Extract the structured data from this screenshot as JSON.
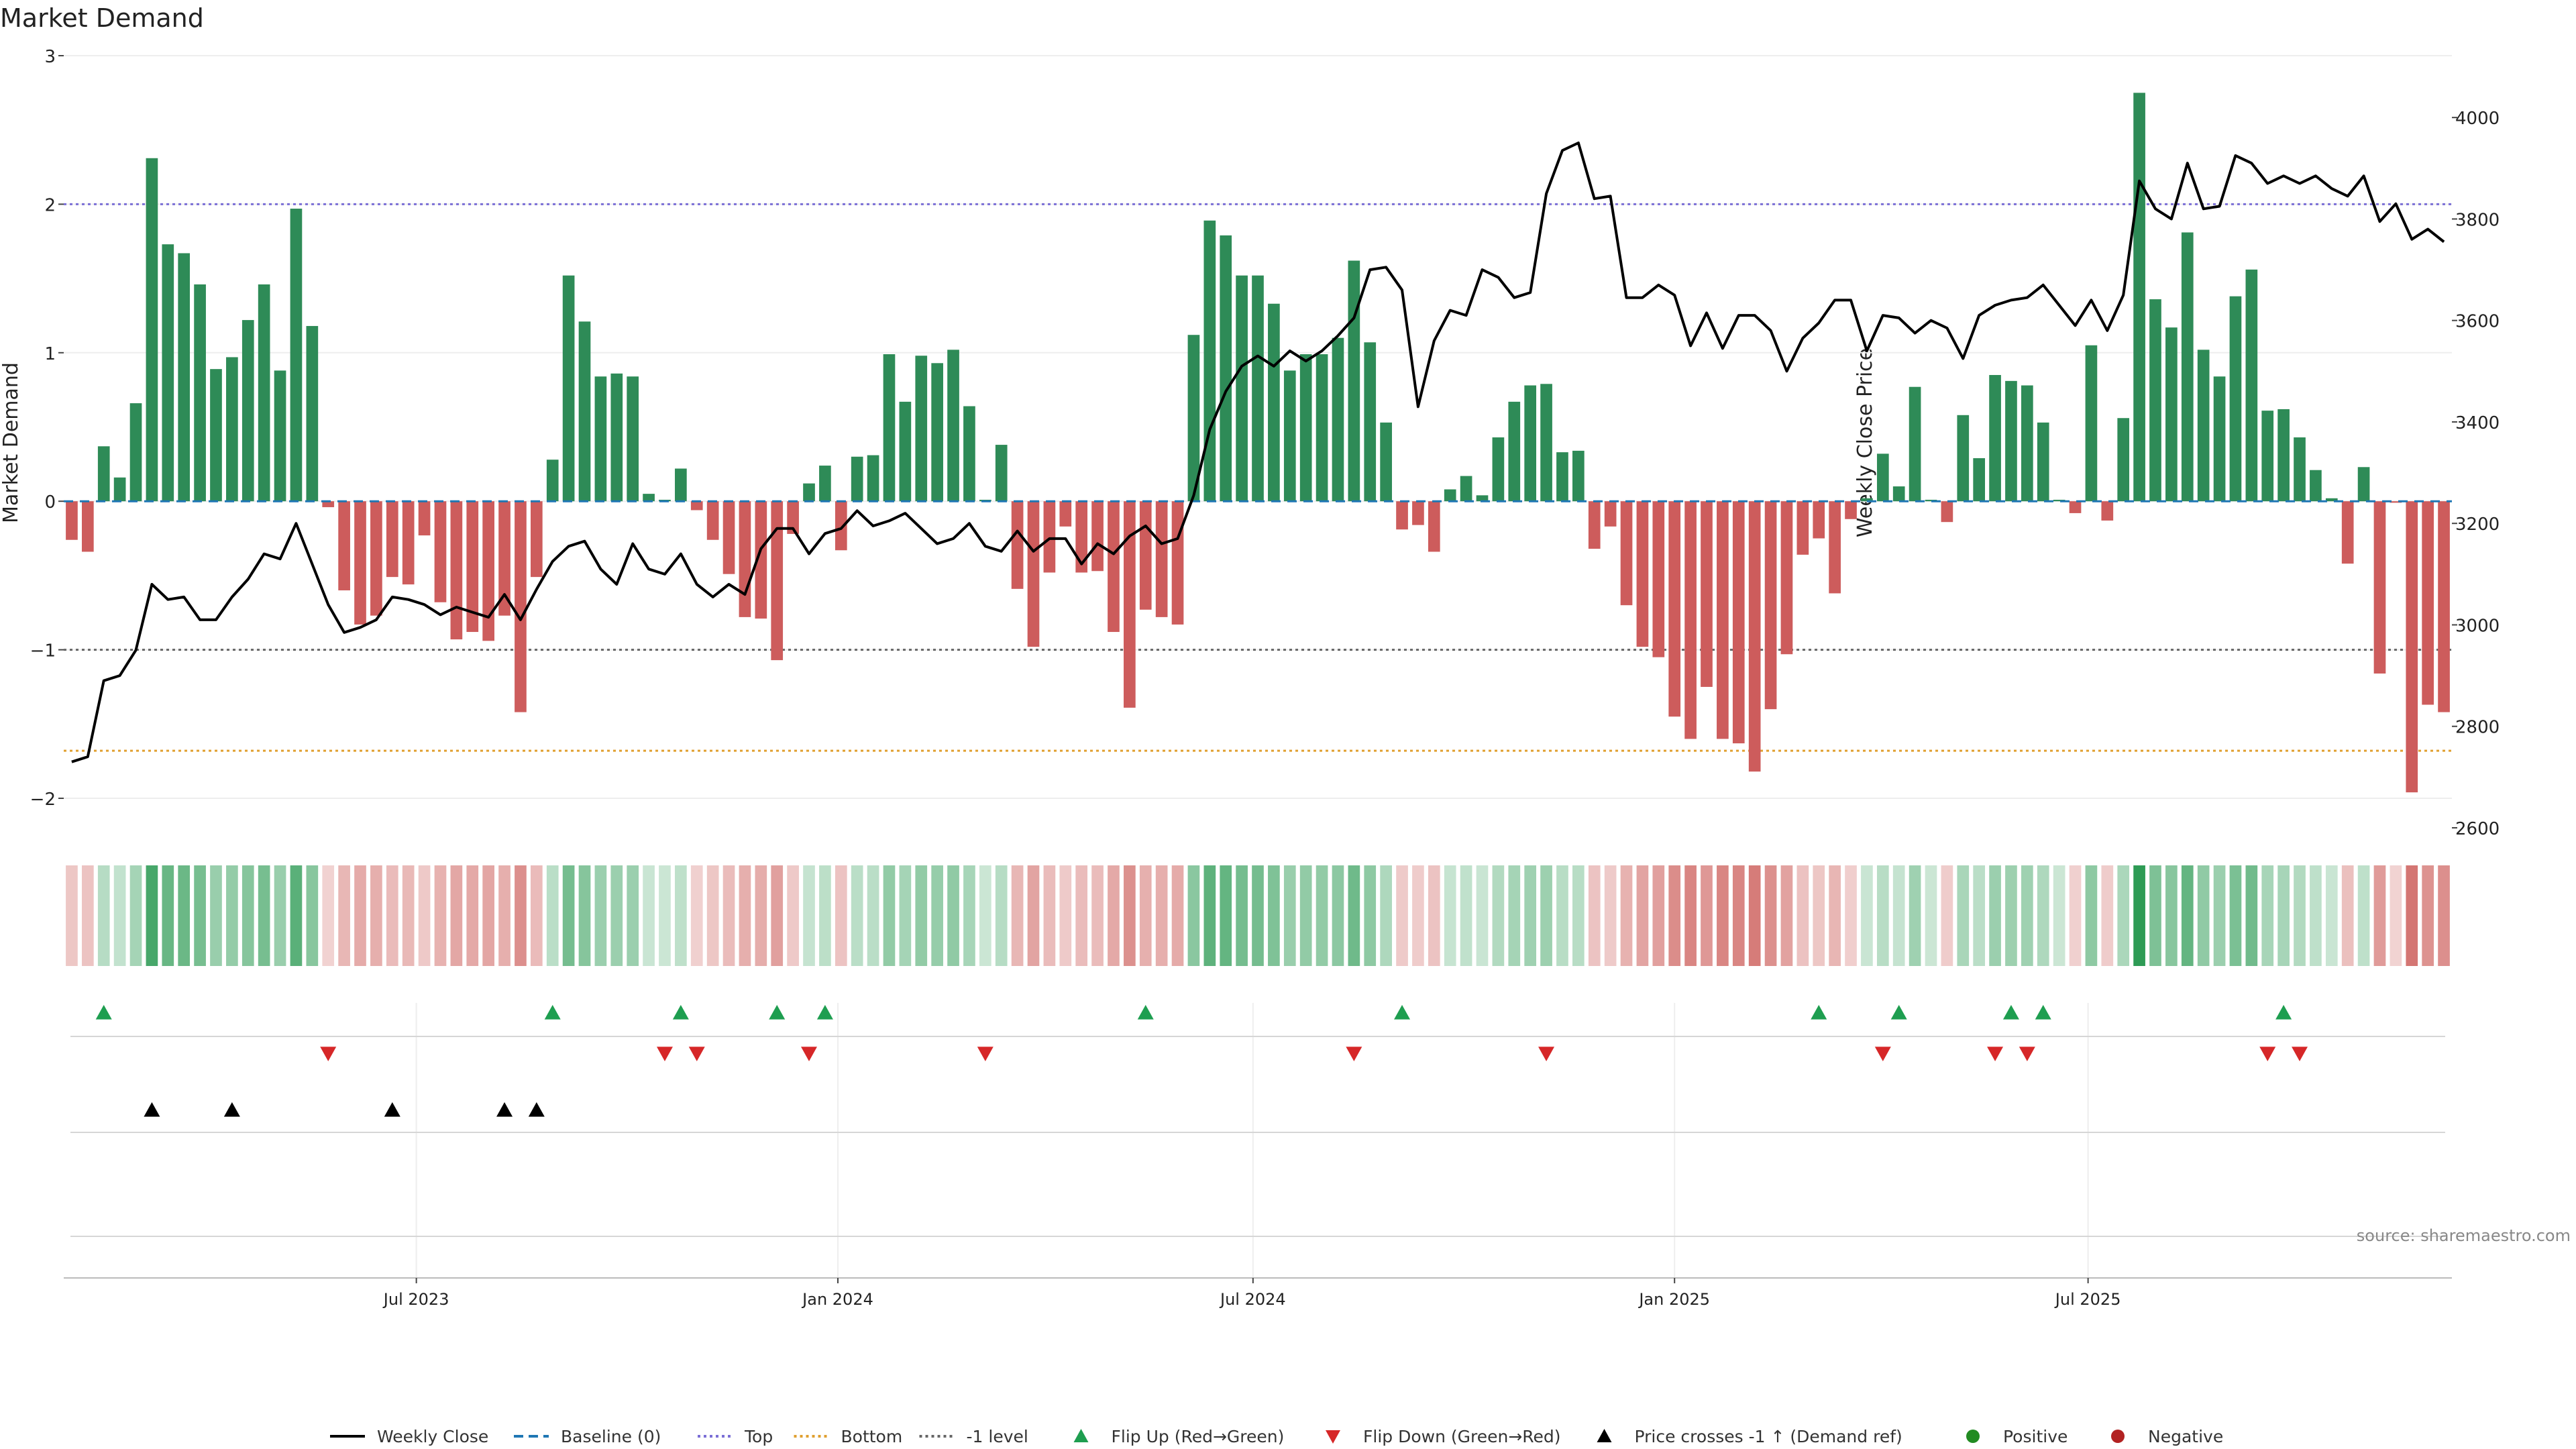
{
  "chart_data": {
    "type": "bar",
    "title": "Market Demand",
    "ylabel": "Market Demand",
    "y2label": "Weekly Close Price",
    "ylim": [
      -2.0,
      3.0
    ],
    "y2lim": [
      2600,
      4150
    ],
    "yticks": [
      -2,
      -1,
      0,
      1,
      2,
      3
    ],
    "ytick_labels": [
      "−2",
      "−1",
      "0",
      "1",
      "2",
      "3"
    ],
    "y2ticks": [
      2600,
      2800,
      3000,
      3200,
      3400,
      3600,
      3800,
      4000
    ],
    "y2tick_labels": [
      "2600",
      "2800",
      "3000",
      "3200",
      "3400",
      "3600",
      "3800",
      "4000"
    ],
    "xticks": [
      {
        "label": "Jul 2023",
        "week": 22
      },
      {
        "label": "Jan 2024",
        "week": 48.3
      },
      {
        "label": "Jul 2024",
        "week": 74.2
      },
      {
        "label": "Jan 2025",
        "week": 100.5
      },
      {
        "label": "Jul 2025",
        "week": 126.3
      }
    ],
    "reference_lines": [
      {
        "name": "Top",
        "value": 2.0,
        "color": "#7b6fd6"
      },
      {
        "name": "-1 level",
        "value": -1.0,
        "color": "#666666"
      },
      {
        "name": "Bottom",
        "value": -1.68,
        "color": "#e0a030"
      }
    ],
    "series": [
      {
        "name": "Market Demand",
        "values": [
          -0.26,
          -0.34,
          0.37,
          0.16,
          0.66,
          2.31,
          1.73,
          1.67,
          1.46,
          0.89,
          0.97,
          1.22,
          1.46,
          0.88,
          1.97,
          1.18,
          -0.04,
          -0.6,
          -0.83,
          -0.77,
          -0.51,
          -0.56,
          -0.23,
          -0.68,
          -0.93,
          -0.88,
          -0.94,
          -0.77,
          -1.42,
          -0.51,
          0.28,
          1.52,
          1.21,
          0.84,
          0.86,
          0.84,
          0.05,
          0.01,
          0.22,
          -0.06,
          -0.26,
          -0.49,
          -0.78,
          -0.79,
          -1.07,
          -0.22,
          0.12,
          0.24,
          -0.33,
          0.3,
          0.31,
          0.99,
          0.67,
          0.98,
          0.93,
          1.02,
          0.64,
          0.01,
          0.38,
          -0.59,
          -0.98,
          -0.48,
          -0.17,
          -0.48,
          -0.47,
          -0.88,
          -1.39,
          -0.73,
          -0.78,
          -0.83,
          1.12,
          1.89,
          1.79,
          1.52,
          1.52,
          1.33,
          0.88,
          0.99,
          0.99,
          1.1,
          1.62,
          1.07,
          0.53,
          -0.19,
          -0.16,
          -0.34,
          0.08,
          0.17,
          0.04,
          0.43,
          0.67,
          0.78,
          0.79,
          0.33,
          0.34,
          -0.32,
          -0.17,
          -0.7,
          -0.98,
          -1.05,
          -1.45,
          -1.6,
          -1.25,
          -1.6,
          -1.63,
          -1.82,
          -1.4,
          -1.03,
          -0.36,
          -0.25,
          -0.62,
          -0.12,
          0.02,
          0.32,
          0.1,
          0.77,
          0.01,
          -0.14,
          0.58,
          0.29,
          0.85,
          0.81,
          0.78,
          0.53,
          0.01,
          -0.08,
          1.05,
          -0.13,
          0.56,
          2.75,
          1.36,
          1.17,
          1.81,
          1.02,
          0.84,
          1.38,
          1.56,
          0.61,
          0.62,
          0.43,
          0.21,
          0.02,
          -0.42,
          0.23,
          -1.16,
          -0.01,
          -1.96,
          -1.37,
          -1.42
        ]
      },
      {
        "name": "Weekly Close",
        "values": [
          2730,
          2740,
          2890,
          2900,
          2950,
          3080,
          3050,
          3055,
          3010,
          3010,
          3055,
          3090,
          3140,
          3130,
          3200,
          3120,
          3040,
          2985,
          2995,
          3010,
          3055,
          3050,
          3040,
          3020,
          3035,
          3025,
          3015,
          3060,
          3010,
          3070,
          3125,
          3155,
          3165,
          3110,
          3080,
          3160,
          3110,
          3100,
          3140,
          3080,
          3055,
          3080,
          3060,
          3150,
          3190,
          3190,
          3140,
          3180,
          3190,
          3225,
          3195,
          3205,
          3220,
          3190,
          3160,
          3170,
          3200,
          3155,
          3145,
          3185,
          3145,
          3170,
          3170,
          3120,
          3160,
          3140,
          3175,
          3195,
          3160,
          3170,
          3255,
          3385,
          3460,
          3510,
          3530,
          3510,
          3540,
          3520,
          3540,
          3570,
          3605,
          3700,
          3705,
          3660,
          3430,
          3560,
          3620,
          3610,
          3700,
          3685,
          3645,
          3655,
          3850,
          3935,
          3950,
          3840,
          3845,
          3645,
          3645,
          3670,
          3650,
          3550,
          3615,
          3545,
          3610,
          3610,
          3580,
          3500,
          3565,
          3595,
          3640,
          3640,
          3540,
          3610,
          3605,
          3575,
          3600,
          3585,
          3525,
          3610,
          3630,
          3640,
          3645,
          3670,
          3630,
          3590,
          3640,
          3580,
          3650,
          3875,
          3820,
          3800,
          3910,
          3820,
          3825,
          3925,
          3910,
          3870,
          3885,
          3870,
          3885,
          3860,
          3845,
          3885,
          3795,
          3830,
          3760,
          3780,
          3755
        ]
      },
      {
        "name": "Baseline (0)",
        "values": [
          0
        ]
      }
    ],
    "flip_up_weeks": [
      2,
      30,
      38,
      44,
      47,
      67,
      83,
      109,
      114,
      121,
      123,
      138
    ],
    "flip_down_weeks": [
      16,
      37,
      39,
      46,
      57,
      80,
      92,
      113,
      120,
      122,
      137,
      139
    ],
    "price_cross_weeks": [
      5,
      10,
      20,
      27,
      29
    ],
    "legend": [
      {
        "label": "Weekly Close",
        "kind": "line",
        "color": "#000000"
      },
      {
        "label": "Baseline (0)",
        "kind": "dash",
        "color": "#1f77b4"
      },
      {
        "label": "Top",
        "kind": "dot",
        "color": "#7b6fd6"
      },
      {
        "label": "Bottom",
        "kind": "dot",
        "color": "#e0a030"
      },
      {
        "label": "-1 level",
        "kind": "dot",
        "color": "#666666"
      },
      {
        "label": "Flip Up (Red→Green)",
        "kind": "tri-up",
        "color": "#1e9e50"
      },
      {
        "label": "Flip Down (Green→Red)",
        "kind": "tri-down",
        "color": "#d62728"
      },
      {
        "label": "Price crosses -1 ↑ (Demand ref)",
        "kind": "tri-up",
        "color": "#000000"
      },
      {
        "label": "Positive",
        "kind": "circle",
        "color": "#228b22"
      },
      {
        "label": "Negative",
        "kind": "circle",
        "color": "#b22222"
      }
    ],
    "legend_position": "bottom-center",
    "source": "source: sharemaestro.com",
    "colors": {
      "positive_bar": "#2e8b57",
      "negative_bar": "#cd5c5c",
      "heat_positive": "#2e9b55",
      "heat_negative": "#c8504c",
      "price_line": "#000000"
    }
  }
}
